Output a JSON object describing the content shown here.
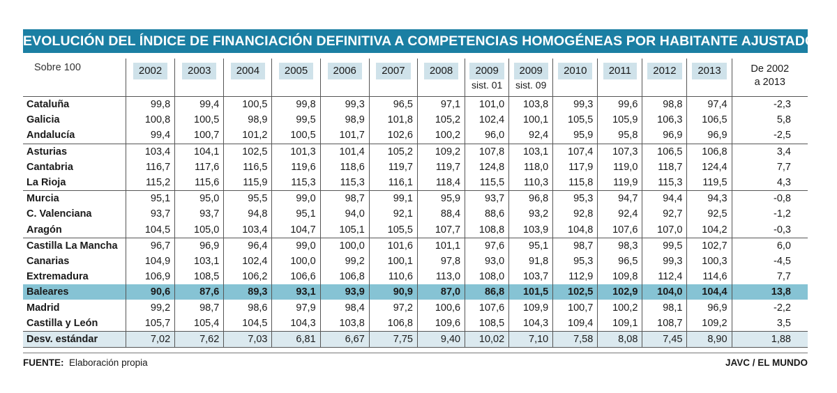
{
  "title": "EVOLUCIÓN DEL ÍNDICE DE FINANCIACIÓN DEFINITIVA A COMPETENCIAS HOMOGÉNEAS POR HABITANTE AJUSTADO",
  "unit_label": "Sobre 100",
  "columns": [
    {
      "year": "2002"
    },
    {
      "year": "2003"
    },
    {
      "year": "2004"
    },
    {
      "year": "2005"
    },
    {
      "year": "2006"
    },
    {
      "year": "2007"
    },
    {
      "year": "2008"
    },
    {
      "year": "2009",
      "sub": "sist. 01"
    },
    {
      "year": "2009",
      "sub": "sist. 09"
    },
    {
      "year": "2010"
    },
    {
      "year": "2011"
    },
    {
      "year": "2012"
    },
    {
      "year": "2013"
    }
  ],
  "change_header": [
    "De 2002",
    "a 2013"
  ],
  "rows": [
    {
      "name": "Cataluña",
      "values": [
        "99,8",
        "99,4",
        "100,5",
        "99,8",
        "99,3",
        "96,5",
        "97,1",
        "101,0",
        "103,8",
        "99,3",
        "99,6",
        "98,8",
        "97,4"
      ],
      "change": "-2,3"
    },
    {
      "name": "Galicia",
      "values": [
        "100,8",
        "100,5",
        "98,9",
        "99,5",
        "98,9",
        "101,8",
        "105,2",
        "102,4",
        "100,1",
        "105,5",
        "105,9",
        "106,3",
        "106,5"
      ],
      "change": "5,8"
    },
    {
      "name": "Andalucía",
      "values": [
        "99,4",
        "100,7",
        "101,2",
        "100,5",
        "101,7",
        "102,6",
        "100,2",
        "96,0",
        "92,4",
        "95,9",
        "95,8",
        "96,9",
        "96,9"
      ],
      "change": "-2,5",
      "sep": true
    },
    {
      "name": "Asturias",
      "values": [
        "103,4",
        "104,1",
        "102,5",
        "101,3",
        "101,4",
        "105,2",
        "109,2",
        "107,8",
        "103,1",
        "107,4",
        "107,3",
        "106,5",
        "106,8"
      ],
      "change": "3,4"
    },
    {
      "name": "Cantabria",
      "values": [
        "116,7",
        "117,6",
        "116,5",
        "119,6",
        "118,6",
        "119,7",
        "119,7",
        "124,8",
        "118,0",
        "117,9",
        "119,0",
        "118,7",
        "124,4"
      ],
      "change": "7,7"
    },
    {
      "name": "La Rioja",
      "values": [
        "115,2",
        "115,6",
        "115,9",
        "115,3",
        "115,3",
        "116,1",
        "118,4",
        "115,5",
        "110,3",
        "115,8",
        "119,9",
        "115,3",
        "119,5"
      ],
      "change": "4,3",
      "sep": true
    },
    {
      "name": "Murcia",
      "values": [
        "95,1",
        "95,0",
        "95,5",
        "99,0",
        "98,7",
        "99,1",
        "95,9",
        "93,7",
        "96,8",
        "95,3",
        "94,7",
        "94,4",
        "94,3"
      ],
      "change": "-0,8"
    },
    {
      "name": "C. Valenciana",
      "values": [
        "93,7",
        "93,7",
        "94,8",
        "95,1",
        "94,0",
        "92,1",
        "88,4",
        "88,6",
        "93,2",
        "92,8",
        "92,4",
        "92,7",
        "92,5"
      ],
      "change": "-1,2"
    },
    {
      "name": "Aragón",
      "values": [
        "104,5",
        "105,0",
        "103,4",
        "104,7",
        "105,1",
        "105,5",
        "107,7",
        "108,8",
        "103,9",
        "104,8",
        "107,6",
        "107,0",
        "104,2"
      ],
      "change": "-0,3",
      "sep": true
    },
    {
      "name": "Castilla La Mancha",
      "values": [
        "96,7",
        "96,9",
        "96,4",
        "99,0",
        "100,0",
        "101,6",
        "101,1",
        "97,6",
        "95,1",
        "98,7",
        "98,3",
        "99,5",
        "102,7"
      ],
      "change": "6,0"
    },
    {
      "name": "Canarias",
      "values": [
        "104,9",
        "103,1",
        "102,4",
        "100,0",
        "99,2",
        "100,1",
        "97,8",
        "93,0",
        "91,8",
        "95,3",
        "96,5",
        "99,3",
        "100,3"
      ],
      "change": "-4,5"
    },
    {
      "name": "Extremadura",
      "values": [
        "106,9",
        "108,5",
        "106,2",
        "106,6",
        "106,8",
        "110,6",
        "113,0",
        "108,0",
        "103,7",
        "112,9",
        "109,8",
        "112,4",
        "114,6"
      ],
      "change": "7,7"
    },
    {
      "name": "Baleares",
      "values": [
        "90,6",
        "87,6",
        "89,3",
        "93,1",
        "93,9",
        "90,9",
        "87,0",
        "86,8",
        "101,5",
        "102,5",
        "102,9",
        "104,0",
        "104,4"
      ],
      "change": "13,8",
      "highlight": true
    },
    {
      "name": "Madrid",
      "values": [
        "99,2",
        "98,7",
        "98,6",
        "97,9",
        "98,4",
        "97,2",
        "100,6",
        "107,6",
        "109,9",
        "100,7",
        "100,2",
        "98,1",
        "96,9"
      ],
      "change": "-2,2"
    },
    {
      "name": "Castilla y León",
      "values": [
        "105,7",
        "105,4",
        "104,5",
        "104,3",
        "103,8",
        "106,8",
        "109,6",
        "108,5",
        "104,3",
        "109,4",
        "109,1",
        "108,7",
        "109,2"
      ],
      "change": "3,5"
    },
    {
      "name": "Desv. estándar",
      "values": [
        "7,02",
        "7,62",
        "7,03",
        "6,81",
        "6,67",
        "7,75",
        "9,40",
        "10,02",
        "7,10",
        "7,58",
        "8,08",
        "7,45",
        "8,90"
      ],
      "change": "1,88",
      "stddev": true
    }
  ],
  "footer": {
    "source_label": "FUENTE:",
    "source": "Elaboración propia",
    "credit": "JAVC / EL MUNDO"
  },
  "colors": {
    "title_bg": "#1b7fa3",
    "highlight_row": "#86c3d4",
    "stddev_row": "#dbe9ef",
    "year_chip": "#cfe2ea"
  }
}
